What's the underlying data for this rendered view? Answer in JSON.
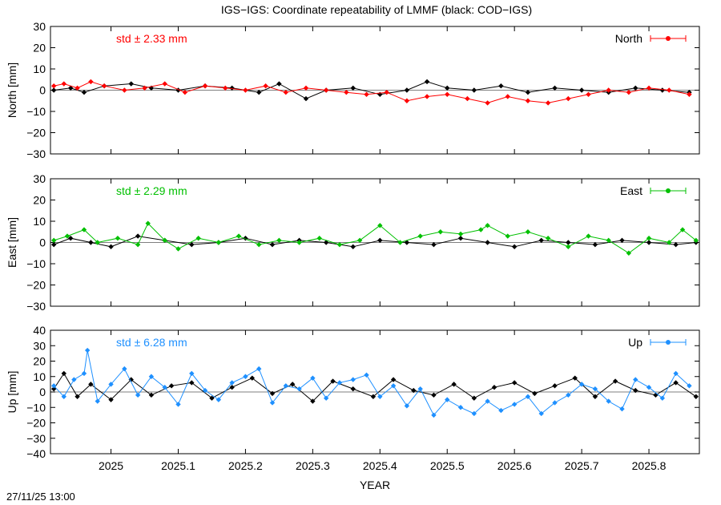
{
  "title": "IGS−IGS: Coordinate repeatability of LMMF (black: COD−IGS)",
  "footer_timestamp": "27/11/25 13:00",
  "chart_data": {
    "type": "scatter",
    "xlabel": "YEAR",
    "xlim": [
      2024.91,
      2025.875
    ],
    "xticks": [
      2025,
      2025.1,
      2025.2,
      2025.3,
      2025.4,
      2025.5,
      2025.6,
      2025.7,
      2025.8
    ],
    "xtick_labels": [
      "2025",
      "2025.1",
      "2025.2",
      "2025.3",
      "2025.4",
      "2025.5",
      "2025.6",
      "2025.7",
      "2025.8"
    ],
    "grid": false,
    "panels": [
      {
        "ylabel": "North [mm]",
        "ylim": [
          -30,
          30
        ],
        "yticks": [
          -30,
          -20,
          -10,
          0,
          10,
          20,
          30
        ],
        "ytick_labels": [
          "−30",
          "−20",
          "−10",
          "0",
          "10",
          "20",
          "30"
        ],
        "legend": "North",
        "std_text": "std ± 2.33 mm",
        "color": "#ff0000",
        "series": [
          {
            "name": "COD−IGS",
            "color": "#000000",
            "x": [
              2024.915,
              2024.94,
              2024.96,
              2024.99,
              2025.03,
              2025.06,
              2025.1,
              2025.14,
              2025.18,
              2025.22,
              2025.25,
              2025.29,
              2025.32,
              2025.36,
              2025.4,
              2025.44,
              2025.47,
              2025.5,
              2025.54,
              2025.58,
              2025.62,
              2025.66,
              2025.7,
              2025.74,
              2025.78,
              2025.82,
              2025.86
            ],
            "y": [
              0,
              1,
              -1,
              2,
              3,
              1,
              0,
              2,
              1,
              -1,
              3,
              -4,
              0,
              1,
              -2,
              0,
              4,
              1,
              0,
              2,
              -1,
              1,
              0,
              -1,
              1,
              0,
              -1
            ]
          },
          {
            "name": "IGS−IGS",
            "color": "#ff0000",
            "x": [
              2024.915,
              2024.93,
              2024.95,
              2024.97,
              2024.99,
              2025.02,
              2025.05,
              2025.08,
              2025.11,
              2025.14,
              2025.17,
              2025.2,
              2025.23,
              2025.26,
              2025.29,
              2025.32,
              2025.35,
              2025.38,
              2025.41,
              2025.44,
              2025.47,
              2025.5,
              2025.53,
              2025.56,
              2025.59,
              2025.62,
              2025.65,
              2025.68,
              2025.71,
              2025.74,
              2025.77,
              2025.8,
              2025.83,
              2025.86
            ],
            "y": [
              2,
              3,
              1,
              4,
              2,
              0,
              1,
              3,
              -1,
              2,
              1,
              0,
              2,
              -1,
              1,
              0,
              -1,
              -2,
              -1,
              -5,
              -3,
              -2,
              -4,
              -6,
              -3,
              -5,
              -6,
              -4,
              -2,
              0,
              -1,
              1,
              0,
              -2
            ]
          }
        ]
      },
      {
        "ylabel": "East [mm]",
        "ylim": [
          -30,
          30
        ],
        "yticks": [
          -30,
          -20,
          -10,
          0,
          10,
          20,
          30
        ],
        "ytick_labels": [
          "−30",
          "−20",
          "−10",
          "0",
          "10",
          "20",
          "30"
        ],
        "legend": "East",
        "std_text": "std ± 2.29 mm",
        "color": "#00c000",
        "series": [
          {
            "name": "COD−IGS",
            "color": "#000000",
            "x": [
              2024.915,
              2024.94,
              2024.97,
              2025.0,
              2025.04,
              2025.08,
              2025.12,
              2025.16,
              2025.2,
              2025.24,
              2025.28,
              2025.32,
              2025.36,
              2025.4,
              2025.44,
              2025.48,
              2025.52,
              2025.56,
              2025.6,
              2025.64,
              2025.68,
              2025.72,
              2025.76,
              2025.8,
              2025.84,
              2025.87
            ],
            "y": [
              -1,
              2,
              0,
              -2,
              3,
              1,
              -1,
              0,
              2,
              -1,
              1,
              0,
              -2,
              1,
              0,
              -1,
              2,
              0,
              -2,
              1,
              0,
              -1,
              1,
              0,
              -1,
              0
            ]
          },
          {
            "name": "IGS−IGS",
            "color": "#00c000",
            "x": [
              2024.915,
              2024.935,
              2024.96,
              2024.98,
              2025.01,
              2025.04,
              2025.055,
              2025.08,
              2025.1,
              2025.13,
              2025.16,
              2025.19,
              2025.22,
              2025.25,
              2025.28,
              2025.31,
              2025.34,
              2025.37,
              2025.4,
              2025.43,
              2025.46,
              2025.49,
              2025.52,
              2025.55,
              2025.56,
              2025.59,
              2025.62,
              2025.65,
              2025.68,
              2025.71,
              2025.74,
              2025.77,
              2025.8,
              2025.83,
              2025.85,
              2025.87
            ],
            "y": [
              1,
              3,
              6,
              0,
              2,
              -1,
              9,
              1,
              -3,
              2,
              0,
              3,
              -1,
              1,
              0,
              2,
              -1,
              1,
              8,
              0,
              3,
              5,
              4,
              6,
              8,
              3,
              5,
              2,
              -2,
              3,
              1,
              -5,
              2,
              0,
              6,
              1
            ]
          }
        ]
      },
      {
        "ylabel": "Up [mm]",
        "ylim": [
          -40,
          40
        ],
        "yticks": [
          -40,
          -30,
          -20,
          -10,
          0,
          10,
          20,
          30,
          40
        ],
        "ytick_labels": [
          "−40",
          "−30",
          "−20",
          "−10",
          "0",
          "10",
          "20",
          "30",
          "40"
        ],
        "legend": "Up",
        "std_text": "std ± 6.28 mm",
        "color": "#1e90ff",
        "series": [
          {
            "name": "COD−IGS",
            "color": "#000000",
            "x": [
              2024.915,
              2024.93,
              2024.95,
              2024.97,
              2025.0,
              2025.03,
              2025.06,
              2025.09,
              2025.12,
              2025.15,
              2025.18,
              2025.21,
              2025.24,
              2025.27,
              2025.3,
              2025.33,
              2025.36,
              2025.39,
              2025.42,
              2025.45,
              2025.48,
              2025.51,
              2025.54,
              2025.57,
              2025.6,
              2025.63,
              2025.66,
              2025.69,
              2025.72,
              2025.75,
              2025.78,
              2025.81,
              2025.84,
              2025.87
            ],
            "y": [
              2,
              12,
              -3,
              5,
              -5,
              8,
              -2,
              4,
              6,
              -4,
              3,
              9,
              -1,
              5,
              -6,
              7,
              2,
              -3,
              8,
              1,
              -2,
              5,
              -4,
              3,
              6,
              -1,
              4,
              9,
              -3,
              7,
              1,
              -2,
              6,
              -3
            ]
          },
          {
            "name": "IGS−IGS",
            "color": "#1e90ff",
            "x": [
              2024.915,
              2024.93,
              2024.945,
              2024.96,
              2024.965,
              2024.98,
              2025.0,
              2025.02,
              2025.04,
              2025.06,
              2025.08,
              2025.1,
              2025.12,
              2025.14,
              2025.16,
              2025.18,
              2025.2,
              2025.22,
              2025.24,
              2025.26,
              2025.28,
              2025.3,
              2025.32,
              2025.34,
              2025.36,
              2025.38,
              2025.4,
              2025.42,
              2025.44,
              2025.46,
              2025.48,
              2025.5,
              2025.52,
              2025.54,
              2025.56,
              2025.58,
              2025.6,
              2025.62,
              2025.64,
              2025.66,
              2025.68,
              2025.7,
              2025.72,
              2025.74,
              2025.76,
              2025.78,
              2025.8,
              2025.82,
              2025.84,
              2025.86
            ],
            "y": [
              4,
              -3,
              8,
              12,
              27,
              -6,
              5,
              15,
              -2,
              10,
              3,
              -8,
              12,
              1,
              -5,
              6,
              10,
              15,
              -7,
              4,
              2,
              9,
              -4,
              6,
              8,
              11,
              -3,
              4,
              -9,
              2,
              -15,
              -5,
              -10,
              -14,
              -6,
              -12,
              -8,
              -3,
              -14,
              -7,
              -2,
              5,
              2,
              -6,
              -11,
              8,
              3,
              -4,
              12,
              4
            ]
          }
        ]
      }
    ]
  }
}
